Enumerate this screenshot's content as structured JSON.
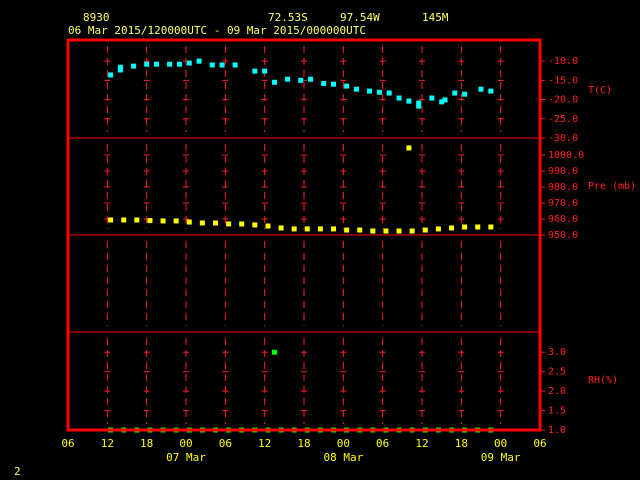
{
  "header": {
    "station": "8930",
    "lat": "72.53S",
    "lon": "97.54W",
    "elev": "145M",
    "period": "06 Mar 2015/120000UTC - 09 Mar 2015/000000UTC"
  },
  "footer": "2",
  "chart_data": [
    {
      "type": "scatter",
      "y_label": "T(C)",
      "ylim": [
        -30,
        -4.5
      ],
      "yticks": [
        {
          "value": -10,
          "label": "-10.0"
        },
        {
          "value": -15,
          "label": "-15.0"
        },
        {
          "value": -20,
          "label": "-20.0"
        },
        {
          "value": -25,
          "label": "-25.0"
        },
        {
          "value": -30,
          "label": "-30.0"
        }
      ],
      "series": [
        {
          "color": "#00ffff",
          "x": [
            6.5,
            8,
            8,
            10,
            12,
            13.5,
            15.5,
            17,
            18.5,
            20,
            22,
            23.5,
            25.5,
            28.5,
            30,
            31.5,
            33.5,
            35.5,
            37,
            39,
            40.5,
            42.5,
            44,
            46,
            47.5,
            49,
            50.5,
            52,
            53.5,
            53.5,
            55.5,
            57,
            57.5,
            59,
            60.5,
            63,
            64.5
          ],
          "values": [
            -13.6,
            -11.6,
            -12.3,
            -11.3,
            -10.8,
            -10.8,
            -10.8,
            -10.8,
            -10.5,
            -10.0,
            -11.0,
            -11.0,
            -11.0,
            -12.6,
            -12.6,
            -15.5,
            -14.7,
            -15.0,
            -14.7,
            -15.8,
            -16.0,
            -16.5,
            -17.3,
            -17.8,
            -18.1,
            -18.3,
            -19.6,
            -20.4,
            -21.7,
            -20.9,
            -19.6,
            -20.6,
            -20.1,
            -18.3,
            -18.6,
            -17.3,
            -17.8
          ]
        }
      ]
    },
    {
      "type": "scatter",
      "y_label": "Pre (mb)",
      "ylim": [
        950,
        1010.6
      ],
      "yticks": [
        {
          "value": 1000,
          "label": "1000.0"
        },
        {
          "value": 990,
          "label": "990.0"
        },
        {
          "value": 980,
          "label": "980.0"
        },
        {
          "value": 970,
          "label": "970.0"
        },
        {
          "value": 960,
          "label": "960.0"
        },
        {
          "value": 950,
          "label": "950.0"
        }
      ],
      "series": [
        {
          "color": "#ffff00",
          "x": [
            6.5,
            8.5,
            10.5,
            12.5,
            14.5,
            16.5,
            18.5,
            20.5,
            22.5,
            24.5,
            26.5,
            28.5,
            30.5,
            32.5,
            34.5,
            36.5,
            38.5,
            40.5,
            42.5,
            44.5,
            46.5,
            48.5,
            50.5,
            52.5,
            54.5,
            56.5,
            58.5,
            60.5,
            62.5,
            64.5
          ],
          "values": [
            959.4,
            959.4,
            959.4,
            959.0,
            958.8,
            958.8,
            958.1,
            957.5,
            957.5,
            956.9,
            956.9,
            956.3,
            955.6,
            954.4,
            953.8,
            953.8,
            953.8,
            953.8,
            953.1,
            953.1,
            952.5,
            952.5,
            952.5,
            952.5,
            953.1,
            953.8,
            954.4,
            955.0,
            955.0,
            955.0
          ]
        },
        {
          "color": "#ffff00",
          "x": [
            52
          ],
          "values": [
            1004.4
          ]
        }
      ]
    },
    {
      "type": "scatter",
      "y_label": "RH(%)",
      "ylim": [
        1.0,
        3.52
      ],
      "yticks": [
        {
          "value": 3,
          "label": "3.0"
        },
        2.5,
        {
          "value": 2,
          "label": "2.0"
        },
        1.5,
        {
          "value": 1,
          "label": "1.0"
        }
      ],
      "xlim": [
        0,
        72
      ],
      "xticks": [
        {
          "value": 0,
          "label": "06"
        },
        {
          "value": 6,
          "label": "12"
        },
        {
          "value": 12,
          "label": "18"
        },
        {
          "value": 18,
          "label": "00"
        },
        {
          "value": 24,
          "label": "06"
        },
        {
          "value": 30,
          "label": "12"
        },
        {
          "value": 36,
          "label": "18"
        },
        {
          "value": 42,
          "label": "00"
        },
        {
          "value": 48,
          "label": "06"
        },
        {
          "value": 54,
          "label": "12"
        },
        {
          "value": 60,
          "label": "18"
        },
        {
          "value": 66,
          "label": "00"
        },
        {
          "value": 72,
          "label": "06"
        }
      ],
      "date_labels": [
        {
          "value": 18,
          "label": "07 Mar"
        },
        {
          "value": 42,
          "label": "08 Mar"
        },
        {
          "value": 66,
          "label": "09 Mar"
        }
      ],
      "series": [
        {
          "color": "#00ff00",
          "x": [
            6.5,
            8.5,
            10.5,
            12.5,
            14.5,
            16.5,
            18.5,
            20.5,
            22.5,
            24.5,
            26.5,
            28.5,
            30.5,
            32.5,
            34.5,
            36.5,
            38.5,
            40.5,
            42.5,
            44.5,
            46.5,
            48.5,
            50.5,
            52.5,
            54.5,
            56.5,
            58.5,
            60.5,
            62.5,
            64.5
          ],
          "values": [
            1.0,
            1.0,
            1.0,
            1.0,
            1.0,
            1.0,
            1.0,
            1.0,
            1.0,
            1.0,
            1.0,
            1.0,
            1.0,
            1.0,
            1.0,
            1.0,
            1.0,
            1.0,
            1.0,
            1.0,
            1.0,
            1.0,
            1.0,
            1.0,
            1.0,
            1.0,
            1.0,
            1.0,
            1.0,
            1.0
          ]
        },
        {
          "color": "#00ff00",
          "x": [
            31.5
          ],
          "values": [
            3.0
          ]
        }
      ]
    }
  ]
}
